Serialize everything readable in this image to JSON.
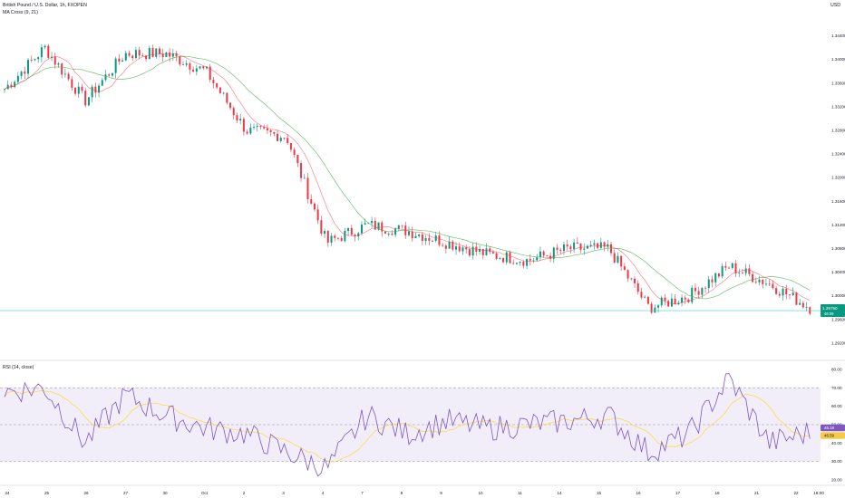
{
  "header": {
    "symbol_title": "British Pound / U.S. Dollar, 1h, FXOPEN",
    "indicator_label": "MA Cross (9, 21)",
    "rsi_label": "RSI (14, close)",
    "currency": "USD"
  },
  "price_pane": {
    "tick_labels": [
      "1.34400",
      "1.34000",
      "1.33600",
      "1.33200",
      "1.32800",
      "1.32400",
      "1.32000",
      "1.31600",
      "1.31200",
      "1.30800",
      "1.30400",
      "1.30000",
      "1.29600",
      "1.29200"
    ],
    "current_price_tag": "1.29750",
    "current_price_tag_sub": "46:09"
  },
  "rsi_pane": {
    "tick_labels": [
      "80.00",
      "70.00",
      "60.00",
      "50.00",
      "40.00",
      "30.00",
      "20.00"
    ],
    "value_tag_1": "46.19",
    "value_tag_2": "46.59"
  },
  "time_axis": {
    "labels": [
      "24",
      "25",
      "26",
      "27",
      "30",
      "Oct",
      "2",
      "3",
      "4",
      "7",
      "8",
      "9",
      "10",
      "11",
      "14",
      "15",
      "16",
      "17",
      "18",
      "21",
      "22",
      "18:00"
    ]
  },
  "colors": {
    "up": "#089981",
    "down": "#f23645",
    "ma_fast": "#f23645",
    "ma_slow": "#4caf50",
    "rsi_line": "#7e57c2",
    "rsi_ma": "#fdd835",
    "rsi_band": "#ede7f6",
    "price_line": "#4dd0c3"
  },
  "chart_data": [
    {
      "type": "line",
      "title": "British Pound / U.S. Dollar, 1h, FXOPEN",
      "xlabel": "",
      "ylabel": "USD",
      "ylim": [
        1.29,
        1.347
      ],
      "x": [
        "24",
        "25",
        "26",
        "27",
        "30",
        "Oct",
        "2",
        "3",
        "4",
        "7",
        "8",
        "9",
        "10",
        "11",
        "14",
        "15",
        "16",
        "17",
        "18",
        "21",
        "22"
      ],
      "series": [
        {
          "name": "",
          "values": [
            1.335,
            1.342,
            1.333,
            1.341,
            1.341,
            1.338,
            1.328,
            1.327,
            1.309,
            1.312,
            1.311,
            1.309,
            1.307,
            1.306,
            1.308,
            1.308,
            1.298,
            1.3,
            1.305,
            1.302,
            1.298
          ]
        }
      ]
    },
    {
      "type": "line",
      "title": "RSI (14, close)",
      "ylim": [
        20,
        80
      ],
      "x": [
        "24",
        "25",
        "26",
        "27",
        "30",
        "Oct",
        "2",
        "3",
        "4",
        "7",
        "8",
        "9",
        "10",
        "11",
        "14",
        "15",
        "16",
        "17",
        "18",
        "21",
        "22"
      ],
      "series": [
        {
          "name": "",
          "values": [
            68,
            70,
            40,
            66,
            55,
            48,
            45,
            35,
            26,
            55,
            45,
            52,
            48,
            50,
            52,
            55,
            35,
            45,
            75,
            40,
            46
          ]
        }
      ]
    }
  ]
}
